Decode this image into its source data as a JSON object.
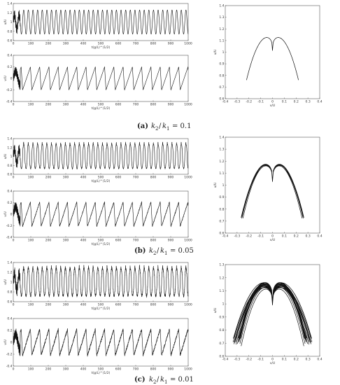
{
  "chart_data": [
    {
      "id": "a_top",
      "type": "line",
      "ylabel": "u/U",
      "xlabel": "t(g/L)^(1/2)",
      "xlim": [
        0,
        1000
      ],
      "ylim": [
        0.6,
        1.4
      ],
      "xticks": [
        "0",
        "100",
        "200",
        "300",
        "400",
        "500",
        "600",
        "700",
        "800",
        "900",
        "1000"
      ],
      "yticks": [
        "0.6",
        "0.8",
        "1",
        "1.2",
        "1.4"
      ],
      "signal": {
        "mean": 1.0,
        "amp": 0.26,
        "period": 26.5,
        "shape": "sine",
        "noise": 0,
        "transient": true
      }
    },
    {
      "id": "a_bottom",
      "type": "line",
      "ylabel": "v/U",
      "xlabel": "t(g/L)^(1/2)",
      "xlim": [
        0,
        1000
      ],
      "ylim": [
        -0.4,
        0.4
      ],
      "xticks": [
        "0",
        "100",
        "200",
        "300",
        "400",
        "500",
        "600",
        "700",
        "800",
        "900",
        "1000"
      ],
      "yticks": [
        "-0.4",
        "-0.2",
        "0",
        "0.2",
        "0.4"
      ],
      "signal": {
        "mean": 0.0,
        "amp": 0.2,
        "period": 53,
        "shape": "saw",
        "noise": 0,
        "transient": true
      }
    },
    {
      "id": "a_phase",
      "type": "line",
      "xlabel": "v/U",
      "ylabel": "u/U",
      "xlim": [
        -0.4,
        0.4
      ],
      "ylim": [
        0.6,
        1.4
      ],
      "xticks": [
        "-0.4",
        "-0.3",
        "-0.2",
        "-0.1",
        "0",
        "0.1",
        "0.2",
        "0.3",
        "0.4"
      ],
      "yticks": [
        "0.6",
        "0.7",
        "0.8",
        "0.9",
        "1",
        "1.1",
        "1.2",
        "1.3",
        "1.4"
      ],
      "orbit": {
        "loops": 1,
        "jitter": 0,
        "bottom": 0.76,
        "top": 1.22,
        "xmax": 0.22
      }
    },
    {
      "id": "b_top",
      "type": "line",
      "ylabel": "u/U",
      "xlabel": "t(g/L)^(1/2)",
      "xlim": [
        0,
        1000
      ],
      "ylim": [
        0.6,
        1.4
      ],
      "xticks": [
        "0",
        "100",
        "200",
        "300",
        "400",
        "500",
        "600",
        "700",
        "800",
        "900",
        "1000"
      ],
      "yticks": [
        "0.6",
        "0.8",
        "1",
        "1.2",
        "1.4"
      ],
      "signal": {
        "mean": 1.0,
        "amp": 0.27,
        "period": 26.5,
        "shape": "spiky",
        "noise": 0.015,
        "transient": true
      }
    },
    {
      "id": "b_bottom",
      "type": "line",
      "ylabel": "v/U",
      "xlabel": "t(g/L)^(1/2)",
      "xlim": [
        0,
        1000
      ],
      "ylim": [
        -0.4,
        0.4
      ],
      "xticks": [
        "0",
        "100",
        "200",
        "300",
        "400",
        "500",
        "600",
        "700",
        "800",
        "900",
        "1000"
      ],
      "yticks": [
        "-0.4",
        "-0.2",
        "0",
        "0.2",
        "0.4"
      ],
      "signal": {
        "mean": 0.0,
        "amp": 0.21,
        "period": 53,
        "shape": "saw",
        "noise": 0.01,
        "transient": true
      }
    },
    {
      "id": "b_phase",
      "type": "line",
      "xlabel": "v/U",
      "ylabel": "u/U",
      "xlim": [
        -0.4,
        0.4
      ],
      "ylim": [
        0.6,
        1.4
      ],
      "xticks": [
        "-0.4",
        "-0.3",
        "-0.2",
        "-0.1",
        "0",
        "0.1",
        "0.2",
        "0.3",
        "0.4"
      ],
      "yticks": [
        "0.6",
        "0.7",
        "0.8",
        "0.9",
        "1",
        "1.1",
        "1.2",
        "1.3",
        "1.4"
      ],
      "orbit": {
        "loops": 6,
        "jitter": 0.012,
        "bottom": 0.73,
        "top": 1.28,
        "xmax": 0.26
      }
    },
    {
      "id": "c_top",
      "type": "line",
      "ylabel": "u/U",
      "xlabel": "t(g/L)^(1/2)",
      "xlim": [
        0,
        1000
      ],
      "ylim": [
        0.6,
        1.4
      ],
      "xticks": [
        "0",
        "100",
        "200",
        "300",
        "400",
        "500",
        "600",
        "700",
        "800",
        "900",
        "1000"
      ],
      "yticks": [
        "0.6",
        "0.8",
        "1",
        "1.2",
        "1.4"
      ],
      "signal": {
        "mean": 1.0,
        "amp": 0.28,
        "period": 26.5,
        "shape": "spiky",
        "noise": 0.03,
        "transient": true
      }
    },
    {
      "id": "c_bottom",
      "type": "line",
      "ylabel": "v/U",
      "xlabel": "t(g/L)^(1/2)",
      "xlim": [
        0,
        1000
      ],
      "ylim": [
        -0.4,
        0.4
      ],
      "xticks": [
        "0",
        "100",
        "200",
        "300",
        "400",
        "500",
        "600",
        "700",
        "800",
        "900",
        "1000"
      ],
      "yticks": [
        "-0.4",
        "-0.2",
        "0",
        "0.2",
        "0.4"
      ],
      "signal": {
        "mean": 0.0,
        "amp": 0.22,
        "period": 53,
        "shape": "saw",
        "noise": 0.02,
        "transient": true
      }
    },
    {
      "id": "c_phase",
      "type": "line",
      "xlabel": "v/U",
      "ylabel": "u/U",
      "xlim": [
        -0.4,
        0.4
      ],
      "ylim": [
        0.6,
        1.3
      ],
      "xticks": [
        "-0.4",
        "-0.3",
        "-0.2",
        "-0.1",
        "0",
        "0.1",
        "0.2",
        "0.3",
        "0.4"
      ],
      "yticks": [
        "0.6",
        "0.7",
        "0.8",
        "0.9",
        "1",
        "1.1",
        "1.2",
        "1.3"
      ],
      "orbit": {
        "loops": 22,
        "jitter": 0.035,
        "bottom": 0.71,
        "top": 1.25,
        "xmax": 0.3
      }
    }
  ],
  "captions": [
    {
      "label": "(a)",
      "ratio": "= 0.1"
    },
    {
      "label": "(b)",
      "ratio": "= 0.05"
    },
    {
      "label": "(c)",
      "ratio": "= 0.01"
    }
  ],
  "ratio_symbol": {
    "k": "k",
    "sub2": "2",
    "slash": "/",
    "sub1": "1"
  }
}
